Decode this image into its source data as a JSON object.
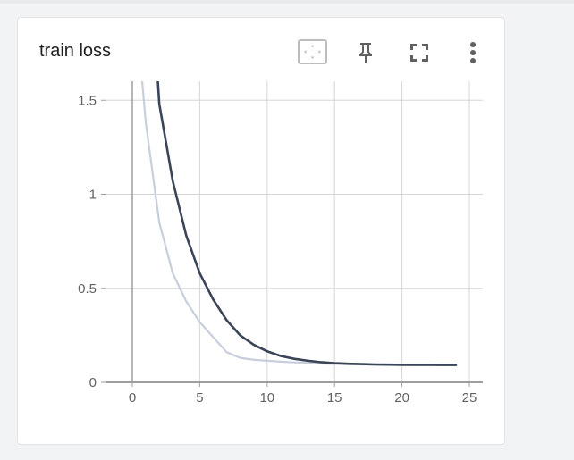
{
  "card": {
    "title": "train loss"
  },
  "toolbar": {
    "icons": [
      "fit-domain-icon",
      "pin-icon",
      "fullscreen-icon",
      "more-vert-icon"
    ]
  },
  "colors": {
    "primary_series": "#3a4558",
    "smoothed_series": "#c8cfdc",
    "grid": "#d6d6d6",
    "axis": "#9e9e9e"
  },
  "chart_data": {
    "type": "line",
    "title": "train loss",
    "xlabel": "",
    "ylabel": "",
    "xlim": [
      -5,
      26
    ],
    "ylim": [
      0,
      1.6
    ],
    "x_ticks": [
      0,
      5,
      10,
      15,
      20,
      25
    ],
    "x_tick_labels": [
      "0",
      "5",
      "10",
      "15",
      "20",
      "25"
    ],
    "y_ticks": [
      0,
      0.5,
      1,
      1.5
    ],
    "y_tick_labels": [
      "0",
      "0.5",
      "1",
      "1.5"
    ],
    "grid": true,
    "legend": "none",
    "series": [
      {
        "color": "#3a4558",
        "x": [
          1,
          2,
          3,
          4,
          5,
          6,
          7,
          8,
          9,
          10,
          11,
          12,
          13,
          14,
          15,
          16,
          17,
          18,
          19,
          20,
          21,
          22,
          23,
          24
        ],
        "y": [
          2.6,
          1.48,
          1.07,
          0.78,
          0.58,
          0.44,
          0.33,
          0.25,
          0.2,
          0.165,
          0.14,
          0.125,
          0.115,
          0.107,
          0.102,
          0.099,
          0.097,
          0.095,
          0.094,
          0.093,
          0.093,
          0.093,
          0.092,
          0.092
        ]
      },
      {
        "color": "#c8cfdc",
        "x": [
          0,
          1,
          2,
          3,
          4,
          5,
          6,
          7,
          8,
          9,
          10,
          11,
          12,
          13,
          14,
          15,
          16,
          17,
          18,
          19,
          20,
          21,
          22,
          23,
          24
        ],
        "y": [
          2.2,
          1.38,
          0.85,
          0.58,
          0.43,
          0.32,
          0.24,
          0.16,
          0.13,
          0.12,
          0.115,
          0.11,
          0.106,
          0.103,
          0.1,
          0.098,
          0.096,
          0.095,
          0.094,
          0.093,
          0.093,
          0.092,
          0.092,
          0.092,
          0.092
        ]
      }
    ]
  }
}
